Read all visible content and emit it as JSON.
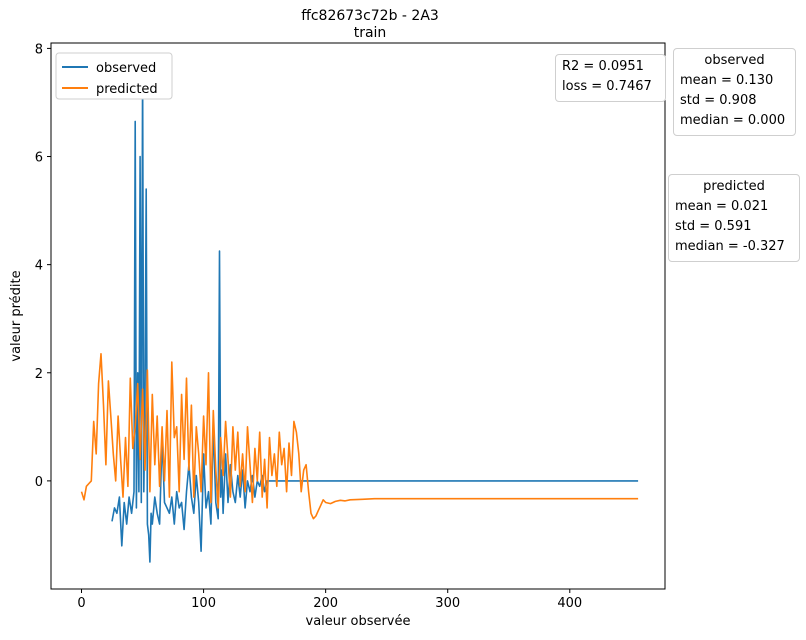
{
  "title_line1": "ffc82673c72b - 2A3",
  "title_line2": "train",
  "metrics": {
    "r2": "R2 = 0.0951",
    "loss": "loss = 0.7467"
  },
  "stats": {
    "observed": {
      "title": "observed",
      "mean": "mean = 0.130",
      "std": "std = 0.908",
      "median": "median = 0.000"
    },
    "predicted": {
      "title": "predicted",
      "mean": "mean = 0.021",
      "std": "std = 0.591",
      "median": "median = -0.327"
    }
  },
  "chart_data": {
    "type": "line",
    "title": "ffc82673c72b - 2A3\ntrain",
    "xlabel": "valeur observée",
    "ylabel": "valeur prédite",
    "xlim": [
      -25,
      478
    ],
    "ylim": [
      -2.0,
      8.1
    ],
    "xticks": [
      0,
      100,
      200,
      300,
      400
    ],
    "yticks": [
      0,
      2,
      4,
      6,
      8
    ],
    "grid": false,
    "legend_position": "top-left",
    "series": [
      {
        "name": "observed",
        "color": "#1f77b4",
        "x": [
          25,
          27,
          29,
          31,
          33,
          35,
          37,
          39,
          41,
          43,
          44,
          45,
          46,
          47,
          48,
          49,
          50,
          51,
          52,
          53,
          54,
          55,
          56,
          57,
          58,
          60,
          62,
          64,
          66,
          68,
          70,
          72,
          74,
          76,
          78,
          80,
          82,
          84,
          86,
          88,
          90,
          92,
          94,
          96,
          98,
          100,
          102,
          104,
          106,
          108,
          110,
          112,
          113,
          114,
          115,
          116,
          118,
          120,
          122,
          124,
          126,
          128,
          130,
          132,
          134,
          136,
          138,
          140,
          142,
          144,
          146,
          148,
          150,
          152,
          154,
          156,
          158,
          160,
          162,
          164,
          166,
          168,
          170,
          172,
          174,
          176,
          178,
          180,
          182,
          184,
          186,
          188,
          190,
          192,
          194,
          196,
          198,
          200,
          202,
          204,
          206,
          456
        ],
        "y": [
          -0.75,
          -0.5,
          -0.6,
          -0.3,
          -1.2,
          -0.4,
          -0.8,
          -0.3,
          -0.6,
          -0.2,
          6.65,
          -0.5,
          2.0,
          -0.2,
          6.0,
          -0.4,
          7.6,
          -0.2,
          1.5,
          5.4,
          -0.8,
          -1.0,
          -1.5,
          -0.6,
          -0.8,
          -0.3,
          -0.6,
          -0.8,
          0.8,
          -0.4,
          -0.5,
          -0.6,
          -0.3,
          -0.8,
          -0.2,
          -0.5,
          -0.4,
          -0.9,
          -0.2,
          0.3,
          -0.3,
          -0.6,
          0.1,
          -0.4,
          -1.3,
          0.5,
          -0.5,
          -0.2,
          -0.8,
          1.0,
          -0.4,
          -0.7,
          4.25,
          -0.3,
          0.2,
          -0.6,
          0.5,
          -0.4,
          0.3,
          -0.2,
          -0.4,
          0.1,
          -0.3,
          0.2,
          -0.5,
          0.0,
          -0.2,
          0.1,
          -0.3,
          0.0,
          -0.1,
          0.1,
          -0.2,
          0.0,
          0.0,
          0.0,
          0.0,
          0.0,
          0.0,
          0.0,
          0.0,
          0.0,
          0.0,
          0.0,
          0.0,
          0.0,
          0.0,
          0.0,
          0.0,
          0.0,
          0.0,
          0.0,
          0.0,
          0.0,
          0.0,
          0.0,
          0.0,
          0.0,
          0.0,
          0.0,
          0.0,
          0.0
        ]
      },
      {
        "name": "predicted",
        "color": "#ff7f0e",
        "x": [
          0,
          2,
          4,
          6,
          8,
          10,
          12,
          14,
          16,
          18,
          20,
          22,
          24,
          26,
          28,
          30,
          32,
          34,
          36,
          38,
          40,
          42,
          44,
          46,
          48,
          50,
          52,
          54,
          56,
          58,
          60,
          62,
          64,
          66,
          68,
          70,
          72,
          74,
          76,
          78,
          80,
          82,
          84,
          86,
          88,
          90,
          92,
          94,
          96,
          98,
          100,
          102,
          104,
          106,
          108,
          110,
          112,
          114,
          116,
          118,
          120,
          122,
          124,
          126,
          128,
          130,
          132,
          134,
          136,
          138,
          140,
          142,
          144,
          146,
          148,
          150,
          152,
          154,
          156,
          158,
          160,
          162,
          164,
          166,
          168,
          170,
          172,
          174,
          176,
          178,
          180,
          182,
          184,
          186,
          188,
          190,
          192,
          194,
          196,
          198,
          200,
          204,
          208,
          212,
          216,
          220,
          230,
          240,
          260,
          300,
          350,
          400,
          456
        ],
        "y": [
          -0.2,
          -0.35,
          -0.1,
          -0.05,
          0.0,
          1.1,
          0.5,
          1.8,
          2.35,
          1.4,
          0.3,
          1.85,
          1.2,
          0.5,
          0.0,
          1.2,
          0.4,
          -0.3,
          0.8,
          -0.1,
          1.9,
          0.6,
          1.0,
          1.8,
          0.4,
          1.7,
          0.2,
          2.05,
          -0.2,
          1.6,
          0.3,
          1.2,
          -0.1,
          1.0,
          0.0,
          1.3,
          -0.3,
          2.2,
          0.8,
          1.0,
          -0.2,
          1.6,
          0.4,
          1.9,
          0.2,
          1.4,
          -0.3,
          1.0,
          0.5,
          -0.2,
          1.2,
          0.3,
          2.0,
          -0.4,
          1.3,
          0.2,
          -0.5,
          0.8,
          0.1,
          1.1,
          0.4,
          -0.3,
          1.0,
          0.2,
          0.9,
          -0.1,
          0.5,
          -0.2,
          1.0,
          0.3,
          -0.4,
          0.6,
          0.0,
          0.9,
          -0.3,
          0.4,
          -0.5,
          0.8,
          0.1,
          0.5,
          -0.1,
          0.9,
          0.3,
          0.6,
          -0.2,
          0.7,
          0.1,
          1.1,
          0.9,
          0.5,
          -0.2,
          0.2,
          0.3,
          -0.2,
          -0.6,
          -0.7,
          -0.65,
          -0.55,
          -0.45,
          -0.35,
          -0.4,
          -0.42,
          -0.38,
          -0.36,
          -0.37,
          -0.35,
          -0.34,
          -0.33,
          -0.33,
          -0.33,
          -0.33,
          -0.33,
          -0.33
        ]
      }
    ]
  }
}
